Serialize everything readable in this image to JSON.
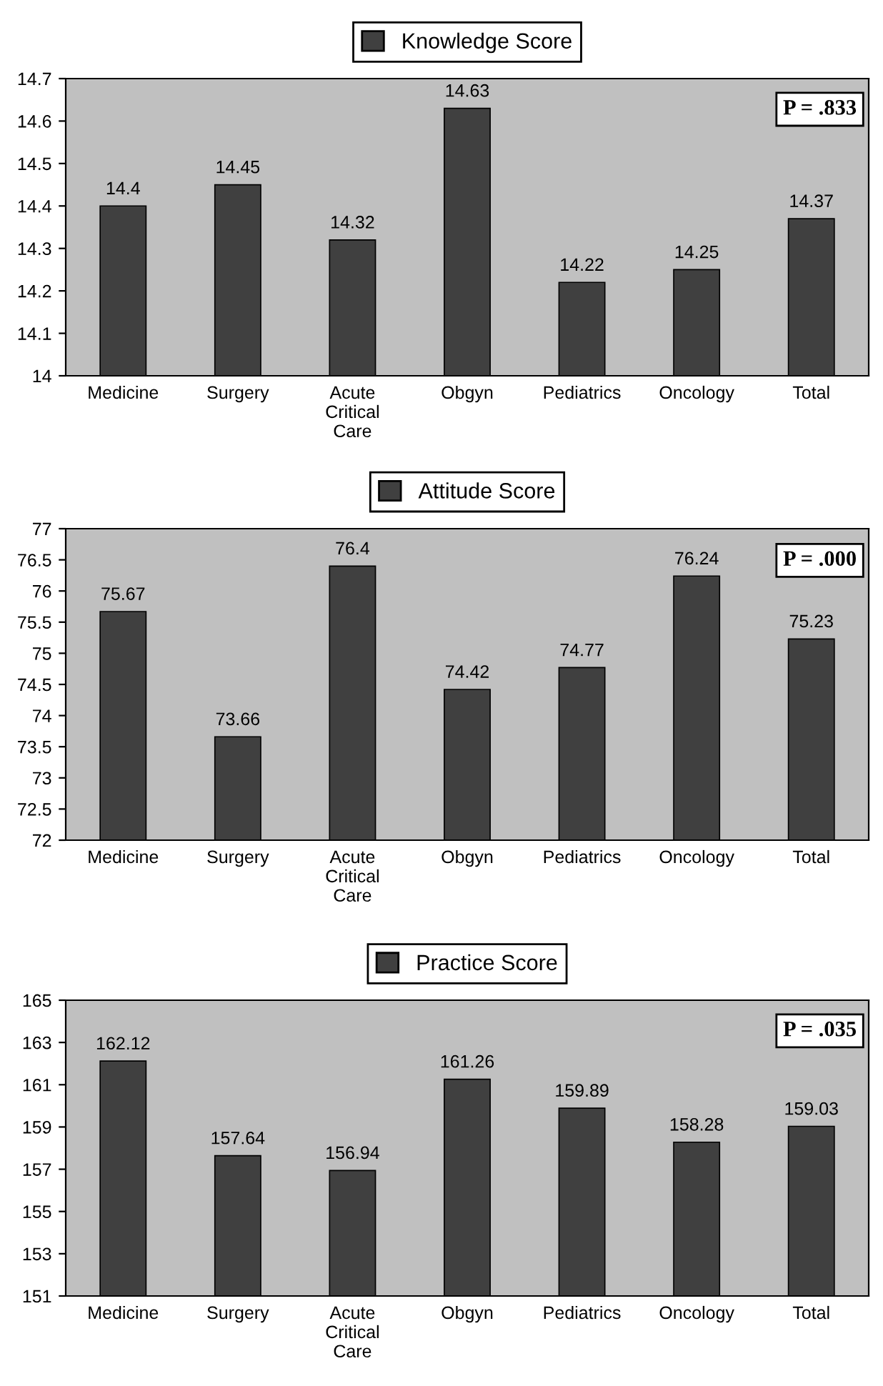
{
  "chart_data": [
    {
      "type": "bar",
      "categories": [
        "Medicine",
        "Surgery",
        "Acute\nCritical\nCare",
        "Obgyn",
        "Pediatrics",
        "Oncology",
        "Total"
      ],
      "series": [
        {
          "name": "Knowledge Score",
          "color": "#404040",
          "values": [
            14.4,
            14.45,
            14.32,
            14.63,
            14.22,
            14.25,
            14.37
          ]
        }
      ],
      "ylim": [
        14,
        14.7
      ],
      "yticks": [
        14,
        14.1,
        14.2,
        14.3,
        14.4,
        14.5,
        14.6,
        14.7
      ],
      "data_labels": true,
      "legend": "top",
      "annotations": [
        "P = .833"
      ]
    },
    {
      "type": "bar",
      "categories": [
        "Medicine",
        "Surgery",
        "Acute\nCritical\nCare",
        "Obgyn",
        "Pediatrics",
        "Oncology",
        "Total"
      ],
      "series": [
        {
          "name": "Attitude Score",
          "color": "#404040",
          "values": [
            75.67,
            73.66,
            76.4,
            74.42,
            74.77,
            76.24,
            75.23
          ]
        }
      ],
      "ylim": [
        72,
        77
      ],
      "yticks": [
        72,
        72.5,
        73,
        73.5,
        74,
        74.5,
        75,
        75.5,
        76,
        76.5,
        77
      ],
      "data_labels": true,
      "legend": "top",
      "annotations": [
        "P = .000"
      ]
    },
    {
      "type": "bar",
      "categories": [
        "Medicine",
        "Surgery",
        "Acute\nCritical\nCare",
        "Obgyn",
        "Pediatrics",
        "Oncology",
        "Total"
      ],
      "series": [
        {
          "name": "Practice Score",
          "color": "#404040",
          "values": [
            162.12,
            157.64,
            156.94,
            161.26,
            159.89,
            158.28,
            159.03
          ]
        }
      ],
      "ylim": [
        151,
        165
      ],
      "yticks": [
        151,
        153,
        155,
        157,
        159,
        161,
        163,
        165
      ],
      "data_labels": true,
      "legend": "top",
      "annotations": [
        "P = .035"
      ]
    }
  ]
}
